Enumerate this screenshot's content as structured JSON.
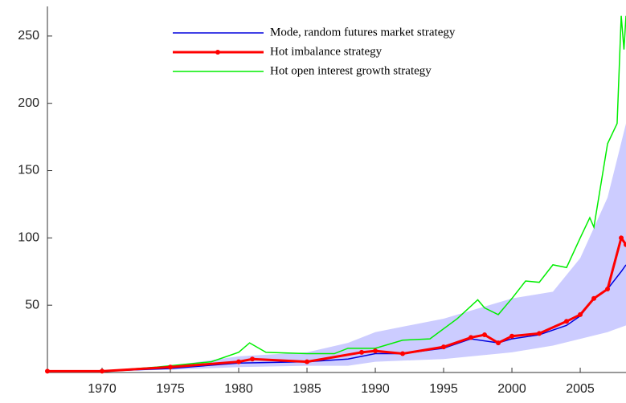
{
  "chart_data": {
    "type": "line",
    "xlim": [
      1966,
      2008.35
    ],
    "ylim": [
      0,
      272
    ],
    "xticks": [
      1970,
      1975,
      1980,
      1985,
      1990,
      1995,
      2000,
      2005
    ],
    "yticks": [
      50,
      100,
      150,
      200,
      250
    ],
    "legend": "upper-center",
    "band": {
      "color": "#ccccff",
      "x": [
        1966,
        1970,
        1975,
        1980,
        1985,
        1988,
        1990,
        1995,
        2000,
        2003,
        2005,
        2007,
        2008.35
      ],
      "lower": [
        1,
        1,
        2,
        4,
        5,
        5,
        8,
        10,
        15,
        20,
        25,
        30,
        35
      ],
      "upper": [
        1,
        1.5,
        5,
        12,
        15,
        22,
        30,
        40,
        55,
        60,
        85,
        130,
        185
      ]
    },
    "series": [
      {
        "name": "Mode, random futures market strategy",
        "color": "#0000dd",
        "markers": false,
        "x": [
          1966,
          1970,
          1975,
          1980,
          1985,
          1988,
          1990,
          1992,
          1995,
          1997,
          1999,
          2000,
          2002,
          2004,
          2005,
          2006,
          2007,
          2008,
          2008.35
        ],
        "values": [
          1,
          1,
          3,
          7,
          8,
          10,
          14,
          14,
          18,
          25,
          22,
          25,
          28,
          35,
          42,
          55,
          62,
          75,
          80
        ]
      },
      {
        "name": "Hot imbalance strategy",
        "color": "#ff0000",
        "markers": true,
        "x": [
          1966,
          1970,
          1975,
          1980,
          1981,
          1985,
          1989,
          1990,
          1992,
          1995,
          1997,
          1998,
          1999,
          2000,
          2002,
          2004,
          2005,
          2006,
          2007,
          2008,
          2008.35
        ],
        "values": [
          1,
          1,
          4,
          8,
          10,
          8,
          15,
          16,
          14,
          19,
          26,
          28,
          22,
          27,
          29,
          38,
          43,
          55,
          62,
          100,
          95
        ]
      },
      {
        "name": "Hot open interest growth strategy",
        "color": "#00ee00",
        "markers": false,
        "x": [
          1966,
          1970,
          1974,
          1978,
          1980,
          1980.8,
          1982,
          1985,
          1987,
          1988,
          1990,
          1992,
          1994,
          1996,
          1997.5,
          1998,
          1999,
          2000,
          2001,
          2002,
          2003,
          2004,
          2005,
          2005.7,
          2006,
          2007,
          2007.7,
          2008,
          2008.2,
          2008.35
        ],
        "values": [
          1,
          1,
          4,
          8,
          15,
          22,
          15,
          14,
          14,
          18,
          18,
          24,
          25,
          40,
          54,
          48,
          43,
          55,
          68,
          67,
          80,
          78,
          100,
          115,
          108,
          170,
          185,
          265,
          240,
          265
        ]
      }
    ]
  }
}
